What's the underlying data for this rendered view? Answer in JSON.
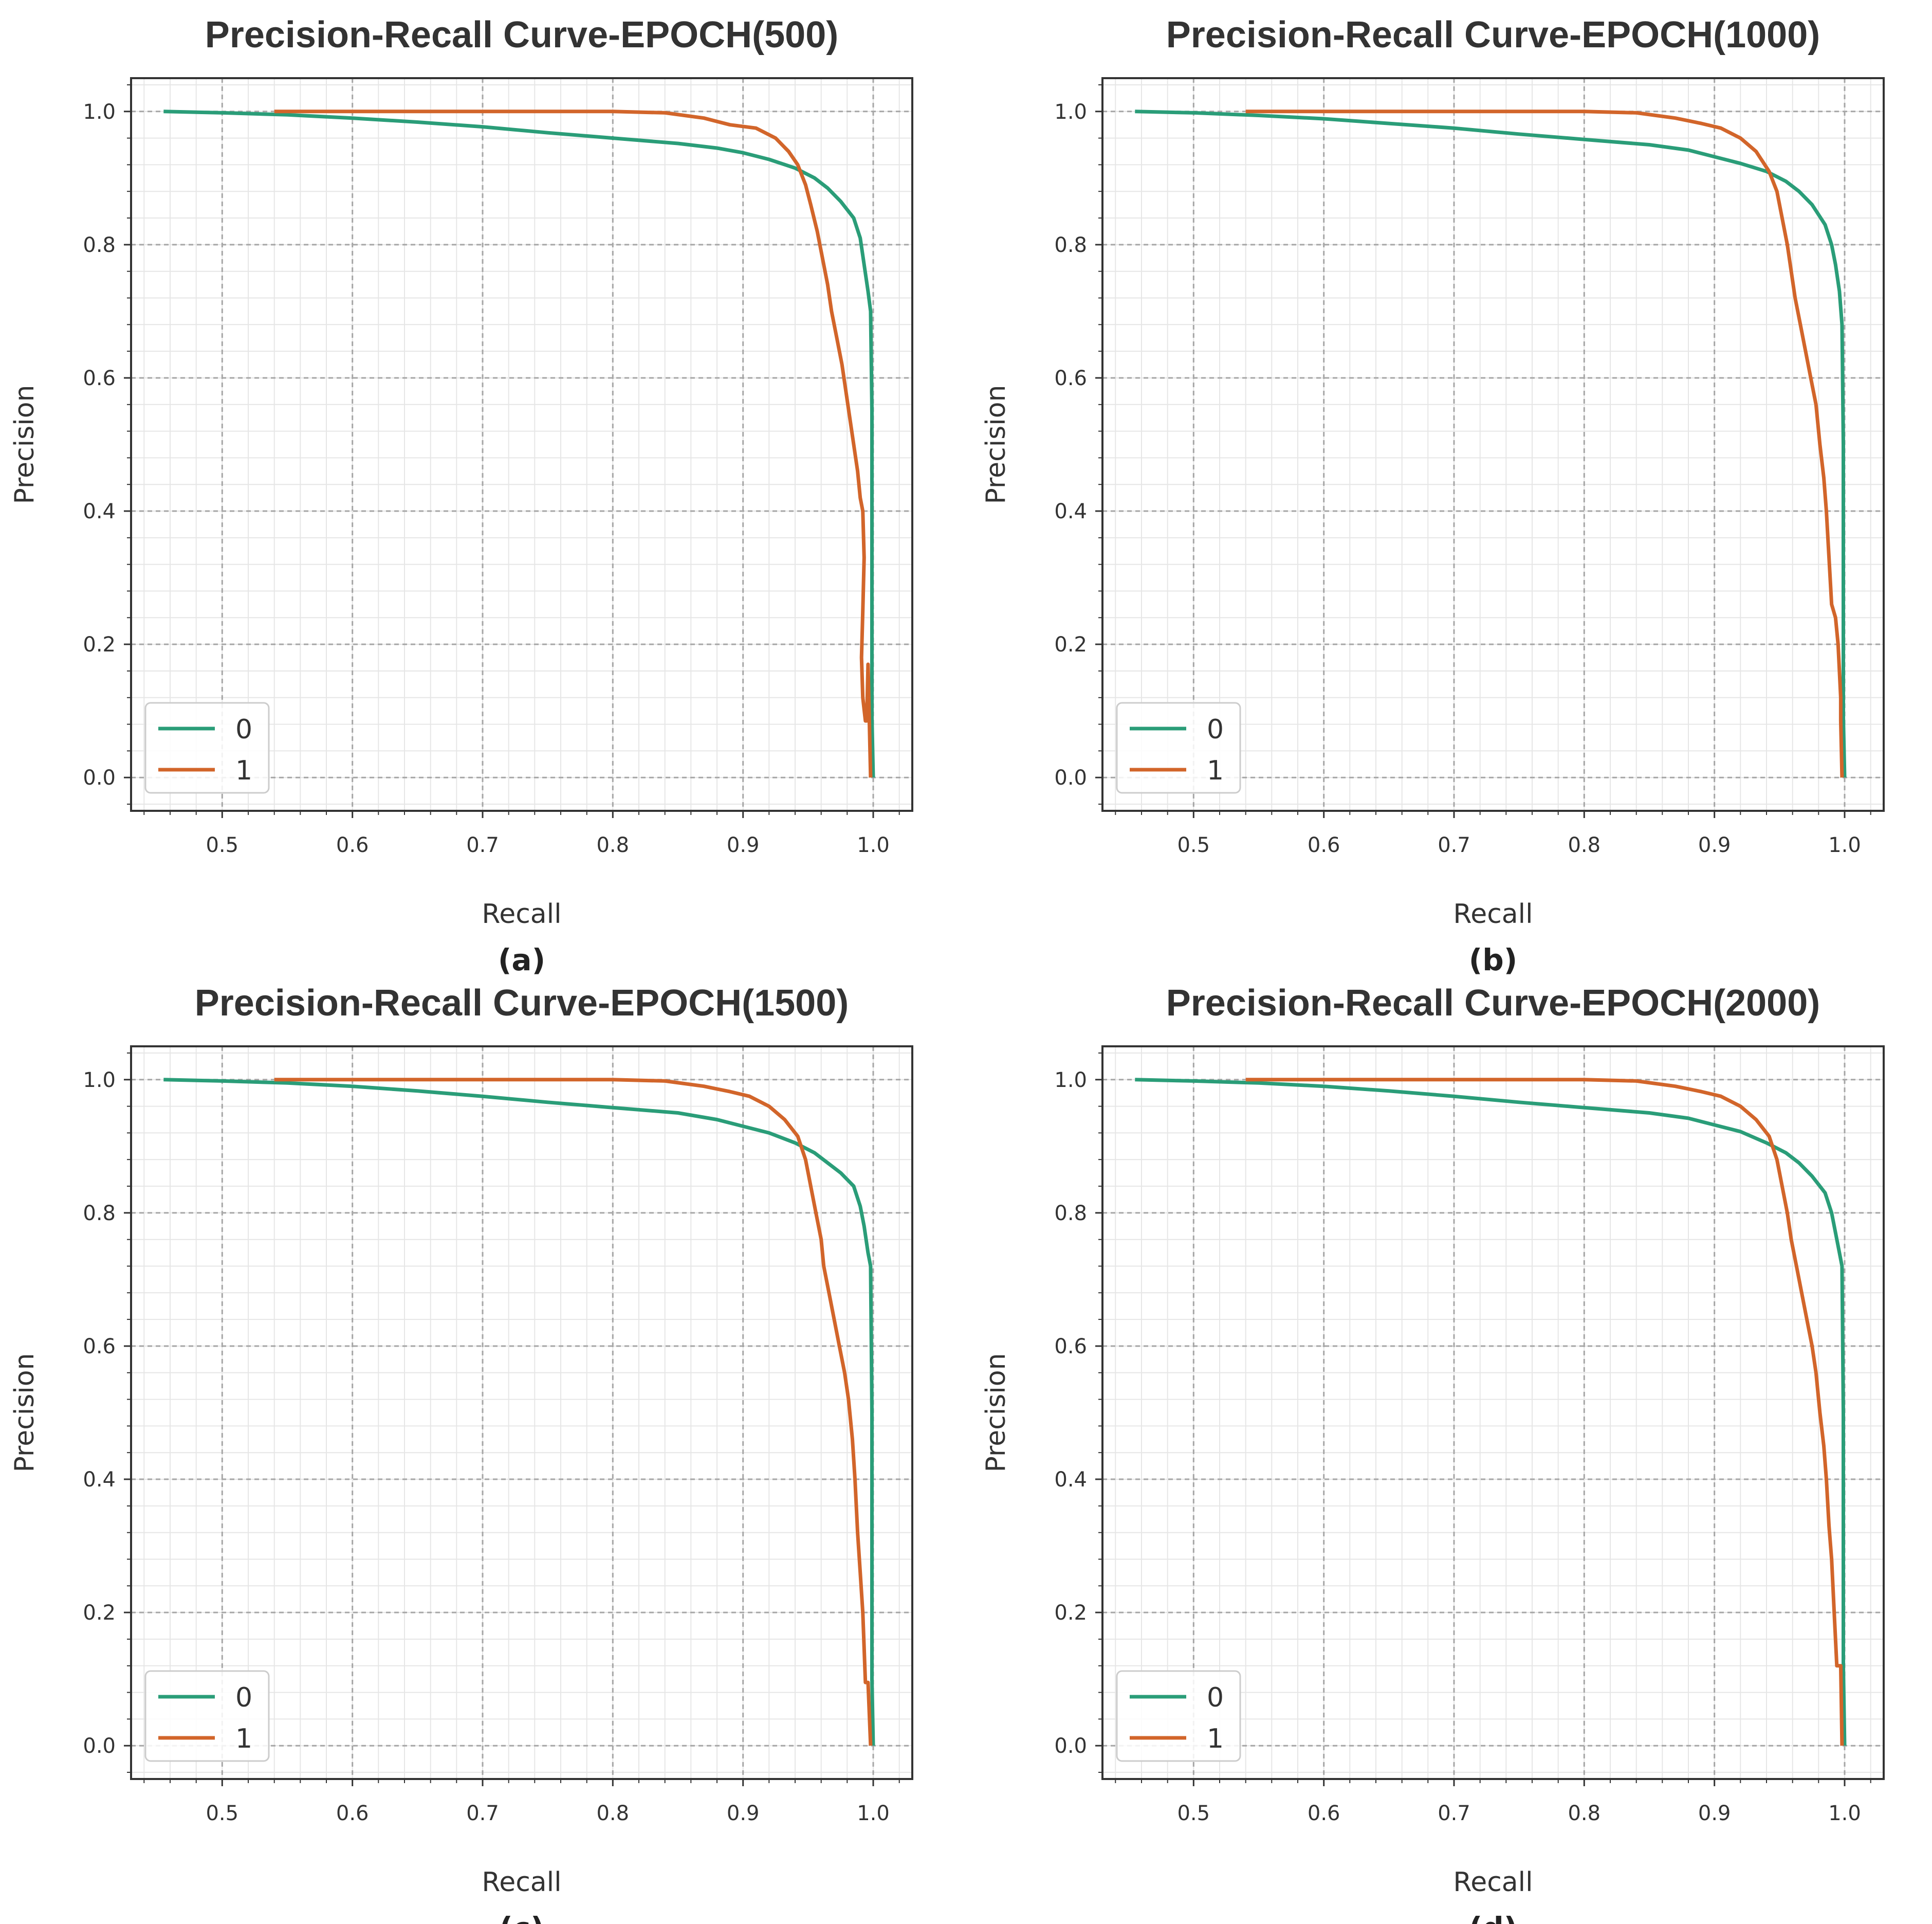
{
  "colors": {
    "class_0": "#2a9d78",
    "class_1": "#d2652a",
    "major_grid": "#a6a6a6",
    "minor_grid": "#e6e6e6",
    "axes": "#333333"
  },
  "chart_data": [
    {
      "panel": "(a)",
      "type": "line",
      "title": "Precision-Recall Curve-EPOCH(500)",
      "xlabel": "Recall",
      "ylabel": "Precision",
      "xlim": [
        0.43,
        1.03
      ],
      "ylim": [
        -0.05,
        1.05
      ],
      "xticks": [
        "0.5",
        "0.6",
        "0.7",
        "0.8",
        "0.9",
        "1.0"
      ],
      "yticks": [
        "0.0",
        "0.2",
        "0.4",
        "0.6",
        "0.8",
        "1.0"
      ],
      "grid": true,
      "legend_position": "lower-left",
      "series": [
        {
          "name": "0",
          "x": [
            0.455,
            0.5,
            0.55,
            0.6,
            0.65,
            0.7,
            0.75,
            0.8,
            0.85,
            0.88,
            0.9,
            0.92,
            0.94,
            0.955,
            0.965,
            0.975,
            0.985,
            0.99,
            0.993,
            0.996,
            0.998,
            0.999,
            0.999,
            0.999,
            0.999,
            1.0
          ],
          "y": [
            1.0,
            0.998,
            0.995,
            0.99,
            0.984,
            0.977,
            0.968,
            0.96,
            0.952,
            0.945,
            0.938,
            0.928,
            0.915,
            0.9,
            0.885,
            0.865,
            0.84,
            0.81,
            0.77,
            0.73,
            0.7,
            0.55,
            0.34,
            0.2,
            0.09,
            0.0
          ]
        },
        {
          "name": "1",
          "x": [
            0.54,
            0.6,
            0.7,
            0.8,
            0.84,
            0.87,
            0.89,
            0.91,
            0.925,
            0.935,
            0.942,
            0.948,
            0.952,
            0.957,
            0.961,
            0.965,
            0.968,
            0.972,
            0.976,
            0.979,
            0.982,
            0.985,
            0.988,
            0.99,
            0.992,
            0.993,
            0.992,
            0.991,
            0.992,
            0.994,
            0.995,
            0.996,
            0.997,
            0.998
          ],
          "y": [
            1.0,
            1.0,
            1.0,
            1.0,
            0.998,
            0.99,
            0.98,
            0.975,
            0.96,
            0.94,
            0.92,
            0.89,
            0.86,
            0.82,
            0.78,
            0.74,
            0.7,
            0.66,
            0.62,
            0.58,
            0.54,
            0.5,
            0.46,
            0.42,
            0.4,
            0.33,
            0.25,
            0.18,
            0.12,
            0.085,
            0.085,
            0.17,
            0.085,
            0.0
          ]
        }
      ]
    },
    {
      "panel": "(b)",
      "type": "line",
      "title": "Precision-Recall Curve-EPOCH(1000)",
      "xlabel": "Recall",
      "ylabel": "Precision",
      "xlim": [
        0.43,
        1.03
      ],
      "ylim": [
        -0.05,
        1.05
      ],
      "xticks": [
        "0.5",
        "0.6",
        "0.7",
        "0.8",
        "0.9",
        "1.0"
      ],
      "yticks": [
        "0.0",
        "0.2",
        "0.4",
        "0.6",
        "0.8",
        "1.0"
      ],
      "grid": true,
      "legend_position": "lower-left",
      "series": [
        {
          "name": "0",
          "x": [
            0.455,
            0.5,
            0.55,
            0.6,
            0.65,
            0.7,
            0.75,
            0.8,
            0.85,
            0.88,
            0.9,
            0.92,
            0.94,
            0.955,
            0.965,
            0.975,
            0.985,
            0.99,
            0.993,
            0.996,
            0.998,
            0.999,
            0.999,
            0.999,
            1.0
          ],
          "y": [
            1.0,
            0.998,
            0.994,
            0.989,
            0.982,
            0.975,
            0.966,
            0.958,
            0.95,
            0.942,
            0.932,
            0.922,
            0.91,
            0.895,
            0.88,
            0.86,
            0.83,
            0.8,
            0.77,
            0.73,
            0.68,
            0.5,
            0.37,
            0.09,
            0.0
          ]
        },
        {
          "name": "1",
          "x": [
            0.54,
            0.6,
            0.7,
            0.8,
            0.84,
            0.87,
            0.89,
            0.905,
            0.92,
            0.932,
            0.942,
            0.948,
            0.952,
            0.956,
            0.959,
            0.962,
            0.966,
            0.97,
            0.974,
            0.978,
            0.981,
            0.984,
            0.986,
            0.988,
            0.99,
            0.993,
            0.995,
            0.997,
            0.997,
            0.998
          ],
          "y": [
            1.0,
            1.0,
            1.0,
            1.0,
            0.998,
            0.99,
            0.982,
            0.975,
            0.96,
            0.94,
            0.91,
            0.88,
            0.84,
            0.8,
            0.76,
            0.72,
            0.68,
            0.64,
            0.6,
            0.56,
            0.5,
            0.45,
            0.4,
            0.33,
            0.26,
            0.24,
            0.2,
            0.12,
            0.085,
            0.0
          ]
        }
      ]
    },
    {
      "panel": "(c)",
      "type": "line",
      "title": "Precision-Recall Curve-EPOCH(1500)",
      "xlabel": "Recall",
      "ylabel": "Precision",
      "xlim": [
        0.43,
        1.03
      ],
      "ylim": [
        -0.05,
        1.05
      ],
      "xticks": [
        "0.5",
        "0.6",
        "0.7",
        "0.8",
        "0.9",
        "1.0"
      ],
      "yticks": [
        "0.0",
        "0.2",
        "0.4",
        "0.6",
        "0.8",
        "1.0"
      ],
      "grid": true,
      "legend_position": "lower-left",
      "series": [
        {
          "name": "0",
          "x": [
            0.455,
            0.5,
            0.55,
            0.6,
            0.65,
            0.7,
            0.75,
            0.8,
            0.85,
            0.88,
            0.9,
            0.92,
            0.94,
            0.955,
            0.965,
            0.975,
            0.985,
            0.99,
            0.993,
            0.996,
            0.998,
            0.999,
            0.999,
            0.999,
            1.0
          ],
          "y": [
            1.0,
            0.998,
            0.995,
            0.99,
            0.983,
            0.975,
            0.966,
            0.958,
            0.95,
            0.94,
            0.93,
            0.92,
            0.905,
            0.89,
            0.875,
            0.86,
            0.84,
            0.81,
            0.78,
            0.74,
            0.72,
            0.5,
            0.4,
            0.1,
            0.0
          ]
        },
        {
          "name": "1",
          "x": [
            0.54,
            0.6,
            0.7,
            0.8,
            0.84,
            0.87,
            0.89,
            0.905,
            0.92,
            0.932,
            0.942,
            0.948,
            0.952,
            0.956,
            0.96,
            0.962,
            0.966,
            0.97,
            0.974,
            0.978,
            0.981,
            0.984,
            0.986,
            0.988,
            0.99,
            0.992,
            0.994,
            0.995,
            0.996,
            0.998
          ],
          "y": [
            1.0,
            1.0,
            1.0,
            1.0,
            0.998,
            0.99,
            0.982,
            0.975,
            0.96,
            0.94,
            0.915,
            0.88,
            0.84,
            0.8,
            0.76,
            0.72,
            0.68,
            0.64,
            0.6,
            0.56,
            0.52,
            0.46,
            0.4,
            0.32,
            0.26,
            0.2,
            0.095,
            0.095,
            0.095,
            0.0
          ]
        }
      ]
    },
    {
      "panel": "(d)",
      "type": "line",
      "title": "Precision-Recall Curve-EPOCH(2000)",
      "xlabel": "Recall",
      "ylabel": "Precision",
      "xlim": [
        0.43,
        1.03
      ],
      "ylim": [
        -0.05,
        1.05
      ],
      "xticks": [
        "0.5",
        "0.6",
        "0.7",
        "0.8",
        "0.9",
        "1.0"
      ],
      "yticks": [
        "0.0",
        "0.2",
        "0.4",
        "0.6",
        "0.8",
        "1.0"
      ],
      "grid": true,
      "legend_position": "lower-left",
      "series": [
        {
          "name": "0",
          "x": [
            0.455,
            0.5,
            0.55,
            0.6,
            0.65,
            0.7,
            0.75,
            0.8,
            0.85,
            0.88,
            0.9,
            0.92,
            0.94,
            0.955,
            0.965,
            0.975,
            0.985,
            0.99,
            0.993,
            0.996,
            0.998,
            0.999,
            0.999,
            0.999,
            1.0
          ],
          "y": [
            1.0,
            0.998,
            0.995,
            0.99,
            0.983,
            0.975,
            0.966,
            0.958,
            0.95,
            0.942,
            0.932,
            0.922,
            0.905,
            0.89,
            0.875,
            0.855,
            0.83,
            0.8,
            0.77,
            0.74,
            0.72,
            0.5,
            0.36,
            0.12,
            0.0
          ]
        },
        {
          "name": "1",
          "x": [
            0.54,
            0.6,
            0.7,
            0.8,
            0.84,
            0.87,
            0.89,
            0.905,
            0.92,
            0.932,
            0.942,
            0.948,
            0.952,
            0.956,
            0.959,
            0.963,
            0.967,
            0.971,
            0.975,
            0.978,
            0.981,
            0.984,
            0.986,
            0.988,
            0.99,
            0.992,
            0.994,
            0.996,
            0.997,
            0.998
          ],
          "y": [
            1.0,
            1.0,
            1.0,
            1.0,
            0.998,
            0.99,
            0.982,
            0.975,
            0.96,
            0.94,
            0.915,
            0.88,
            0.84,
            0.8,
            0.76,
            0.72,
            0.68,
            0.64,
            0.6,
            0.56,
            0.5,
            0.45,
            0.4,
            0.33,
            0.28,
            0.2,
            0.12,
            0.12,
            0.12,
            0.0
          ]
        }
      ]
    }
  ]
}
